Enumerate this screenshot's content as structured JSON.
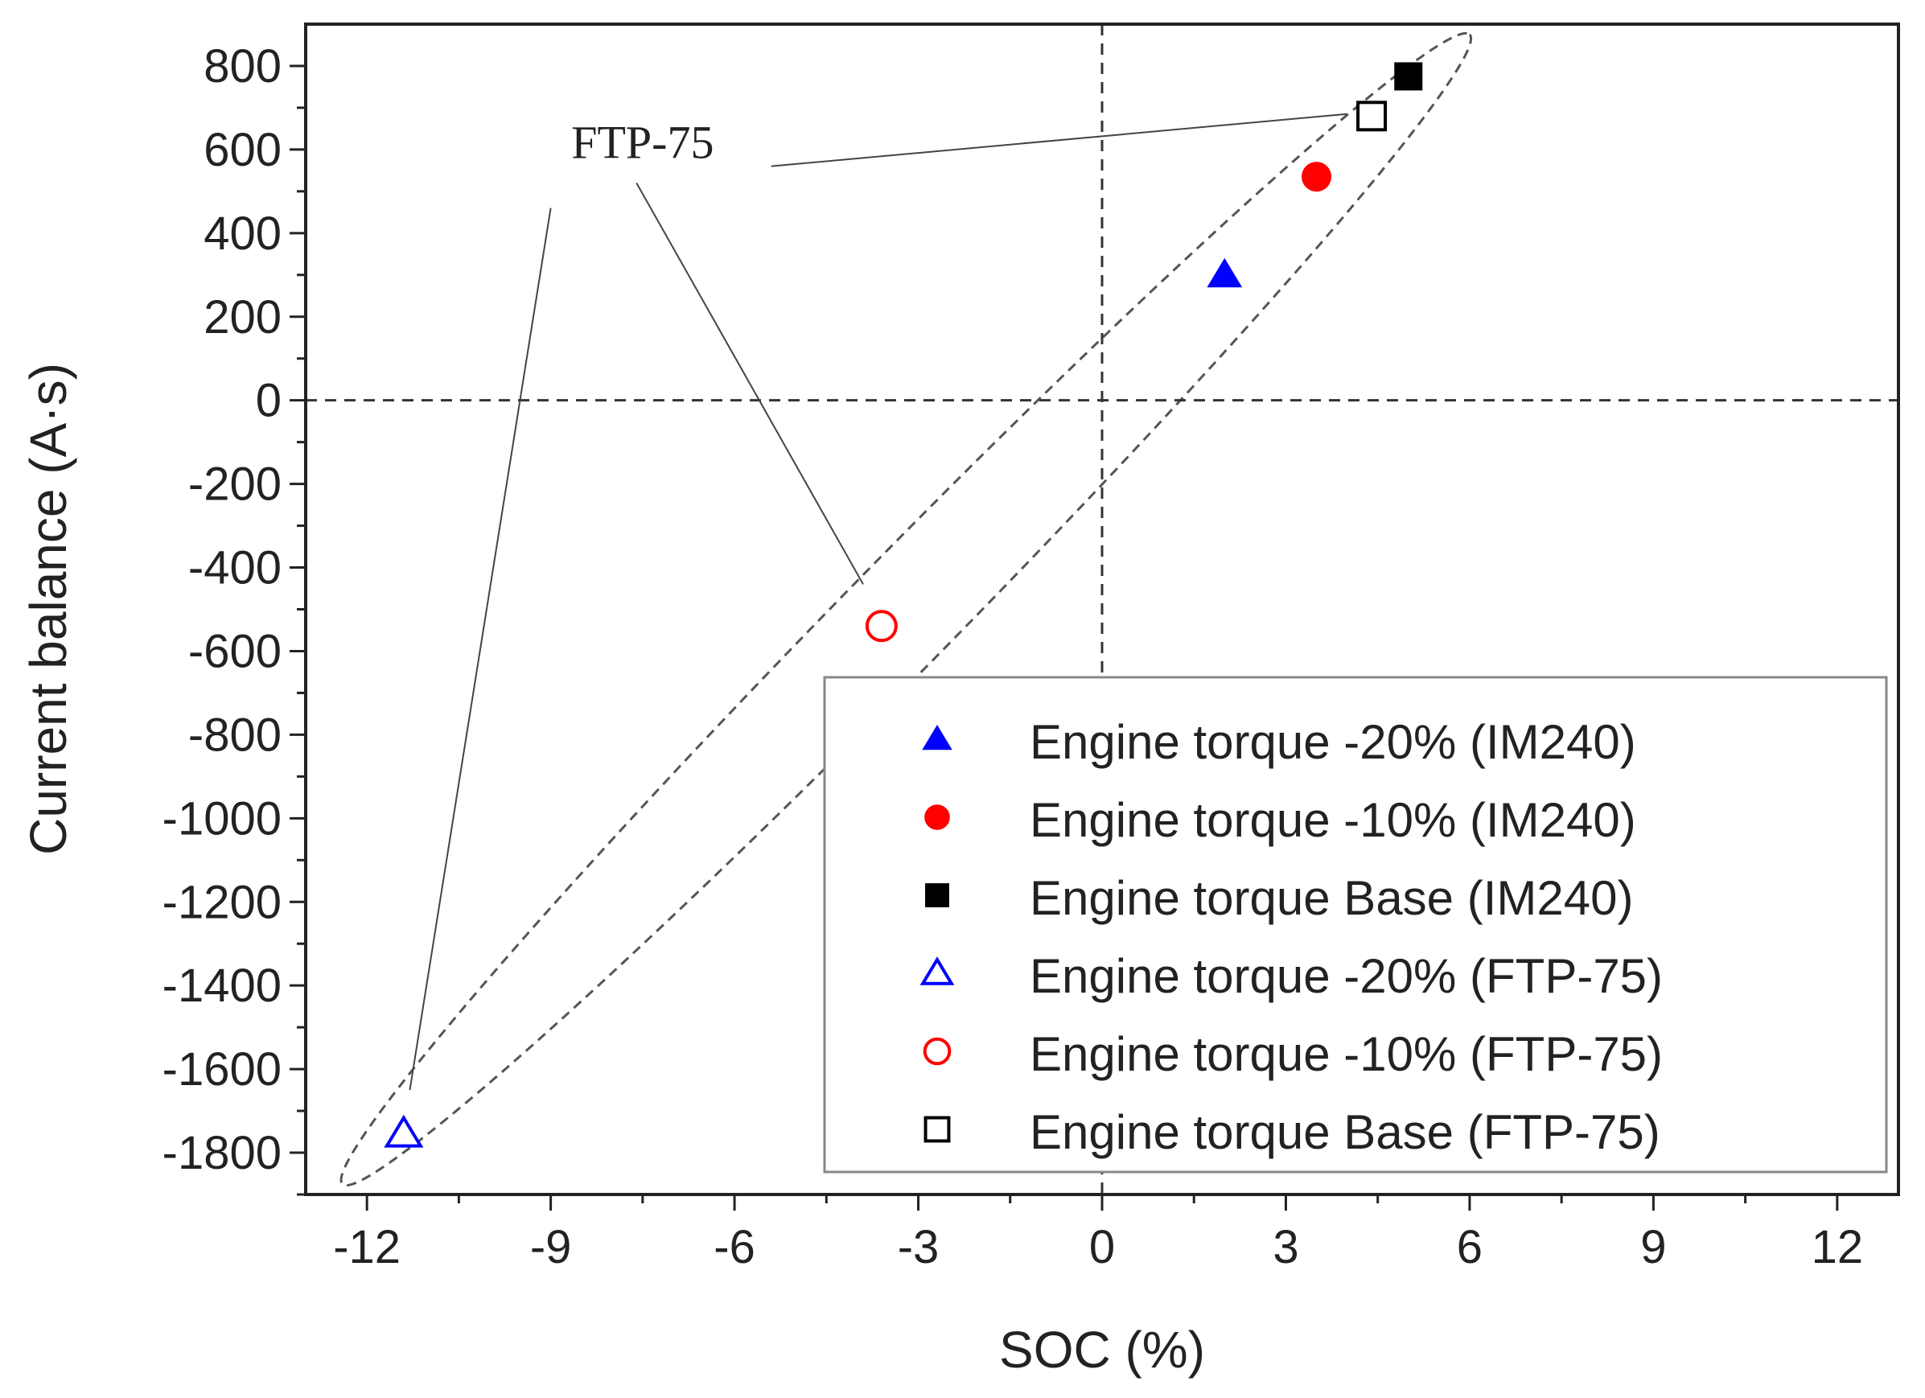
{
  "chart_data": {
    "type": "scatter",
    "xlabel": "SOC (%)",
    "ylabel": "Current balance (A·s)",
    "xlim": [
      -13,
      13
    ],
    "ylim": [
      -1900,
      900
    ],
    "xticks": [
      -12,
      -9,
      -6,
      -3,
      0,
      3,
      6,
      9,
      12
    ],
    "yticks": [
      800,
      600,
      400,
      200,
      0,
      -200,
      -400,
      -600,
      -800,
      -1000,
      -1200,
      -1400,
      -1600,
      -1800
    ],
    "xtick_labels": [
      "-12",
      "-9",
      "-6",
      "-3",
      "0",
      "3",
      "6",
      "9",
      "12"
    ],
    "ytick_labels": [
      "800",
      "600",
      "400",
      "200",
      "0",
      "-200",
      "-400",
      "-600",
      "-800",
      "-1000",
      "-1200",
      "-1400",
      "-1600",
      "-1800"
    ],
    "reference_lines": {
      "x": 0,
      "y": 0
    },
    "series": [
      {
        "name": "Engine torque -20% (IM240)",
        "marker": "triangle",
        "filled": true,
        "color": "#0000ff",
        "x": [
          2.0
        ],
        "y": [
          300
        ]
      },
      {
        "name": "Engine torque -10% (IM240)",
        "marker": "circle",
        "filled": true,
        "color": "#ff0000",
        "x": [
          3.5
        ],
        "y": [
          535
        ]
      },
      {
        "name": "Engine torque Base (IM240)",
        "marker": "square",
        "filled": true,
        "color": "#000000",
        "x": [
          5.0
        ],
        "y": [
          775
        ]
      },
      {
        "name": "Engine torque -20% (FTP-75)",
        "marker": "triangle",
        "filled": false,
        "color": "#0000ff",
        "x": [
          -11.4
        ],
        "y": [
          -1755
        ]
      },
      {
        "name": "Engine torque -10% (FTP-75)",
        "marker": "circle",
        "filled": false,
        "color": "#ff0000",
        "x": [
          -3.6
        ],
        "y": [
          -540
        ]
      },
      {
        "name": "Engine torque Base (FTP-75)",
        "marker": "square",
        "filled": false,
        "color": "#000000",
        "x": [
          4.4
        ],
        "y": [
          680
        ]
      }
    ],
    "annotation": {
      "text": "FTP-75",
      "label_at": {
        "x": -7.5,
        "y": 580
      },
      "pointer_starts": [
        {
          "x": -5.4,
          "y": 560
        },
        {
          "x": -7.6,
          "y": 520
        },
        {
          "x": -9.0,
          "y": 460
        }
      ],
      "pointer_ends": [
        {
          "x": 4.0,
          "y": 685
        },
        {
          "x": -3.9,
          "y": -440
        },
        {
          "x": -11.3,
          "y": -1650
        }
      ]
    },
    "ellipse": {
      "center": {
        "x": -3.2,
        "y": -500
      },
      "through": [
        {
          "x": 5.9,
          "y": 870
        },
        {
          "x": -12.5,
          "y": -1880
        }
      ],
      "semi_minor_fraction": 0.068
    },
    "legend_position": "lower-right",
    "grid": false
  }
}
